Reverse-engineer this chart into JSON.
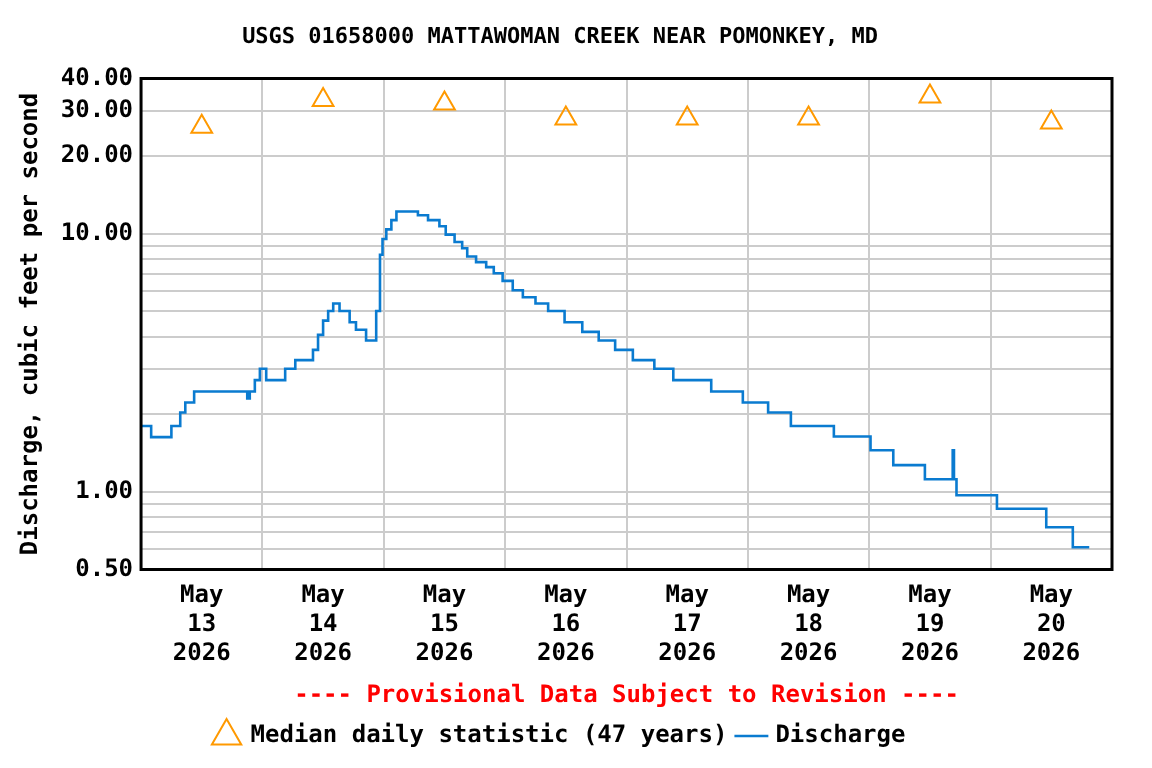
{
  "chart_data": {
    "type": "step",
    "title": "USGS 01658000 MATTAWOMAN CREEK NEAR POMONKEY, MD",
    "ylabel": "Discharge, cubic feet per second",
    "annotations": [
      "---- Provisional Data Subject to Revision ----"
    ],
    "xlim": [
      "2026-05-13T00:00",
      "2026-05-21T00:00"
    ],
    "xticks": [
      {
        "value": "2026-05-13T12:00",
        "label": "May 13 2026"
      },
      {
        "value": "2026-05-14T00:00",
        "label": null
      },
      {
        "value": "2026-05-14T12:00",
        "label": "May 14 2026"
      },
      {
        "value": "2026-05-15T00:00",
        "label": null
      },
      {
        "value": "2026-05-15T12:00",
        "label": "May 15 2026"
      },
      {
        "value": "2026-05-16T00:00",
        "label": null
      },
      {
        "value": "2026-05-16T12:00",
        "label": "May 16 2026"
      },
      {
        "value": "2026-05-17T00:00",
        "label": null
      },
      {
        "value": "2026-05-17T12:00",
        "label": "May 17 2026"
      },
      {
        "value": "2026-05-18T00:00",
        "label": null
      },
      {
        "value": "2026-05-18T12:00",
        "label": "May 18 2026"
      },
      {
        "value": "2026-05-19T00:00",
        "label": null
      },
      {
        "value": "2026-05-19T12:00",
        "label": "May 19 2026"
      },
      {
        "value": "2026-05-20T00:00",
        "label": null
      },
      {
        "value": "2026-05-20T12:00",
        "label": "May 20 2026"
      }
    ],
    "ylim": [
      0.5,
      40
    ],
    "yticks": [
      {
        "value": 0.5,
        "label": "0.50"
      },
      {
        "value": 0.6,
        "label": null
      },
      {
        "value": 0.7,
        "label": null
      },
      {
        "value": 0.8,
        "label": null
      },
      {
        "value": 0.9,
        "label": null
      },
      {
        "value": 1,
        "label": "1.00"
      },
      {
        "value": 2,
        "label": null
      },
      {
        "value": 3,
        "label": null
      },
      {
        "value": 4,
        "label": null
      },
      {
        "value": 5,
        "label": null
      },
      {
        "value": 6,
        "label": null
      },
      {
        "value": 7,
        "label": null
      },
      {
        "value": 8,
        "label": null
      },
      {
        "value": 9,
        "label": null
      },
      {
        "value": 10,
        "label": "10.00"
      },
      {
        "value": 20,
        "label": "20.00"
      },
      {
        "value": 30,
        "label": "30.00"
      },
      {
        "value": 40,
        "label": "40.00"
      }
    ],
    "log": true,
    "grid": true,
    "legend": "bottom",
    "series": [
      {
        "name": "Median daily statistic (47 years)",
        "type": "scatter",
        "marker": "triangle",
        "color": "#ff9900",
        "x": [
          "2026-05-13T12:00",
          "2026-05-14T12:00",
          "2026-05-15T12:00",
          "2026-05-16T12:00",
          "2026-05-17T12:00",
          "2026-05-18T12:00",
          "2026-05-19T12:00",
          "2026-05-20T12:00"
        ],
        "values": [
          26,
          33,
          32,
          28,
          28,
          28,
          34,
          27
        ]
      },
      {
        "name": "Discharge",
        "marker": "none",
        "color": "#0a7bd0",
        "x": [
          "2026-05-13T00:00",
          "2026-05-13T02:00",
          "2026-05-13T06:00",
          "2026-05-13T07:45",
          "2026-05-13T08:45",
          "2026-05-13T10:30",
          "2026-05-13T21:00",
          "2026-05-13T21:30",
          "2026-05-13T22:30",
          "2026-05-13T23:30",
          "2026-05-14T00:45",
          "2026-05-14T04:30",
          "2026-05-14T06:30",
          "2026-05-14T10:00",
          "2026-05-14T11:00",
          "2026-05-14T12:00",
          "2026-05-14T13:00",
          "2026-05-14T14:00",
          "2026-05-14T15:15",
          "2026-05-14T17:15",
          "2026-05-14T18:30",
          "2026-05-14T20:30",
          "2026-05-14T22:30",
          "2026-05-14T23:15",
          "2026-05-14T23:45",
          "2026-05-15T00:30",
          "2026-05-15T01:30",
          "2026-05-15T02:30",
          "2026-05-15T06:45",
          "2026-05-15T08:45",
          "2026-05-15T11:00",
          "2026-05-15T12:15",
          "2026-05-15T14:00",
          "2026-05-15T15:30",
          "2026-05-15T16:30",
          "2026-05-15T18:15",
          "2026-05-15T20:15",
          "2026-05-15T21:45",
          "2026-05-15T23:30",
          "2026-05-16T01:30",
          "2026-05-16T03:30",
          "2026-05-16T06:00",
          "2026-05-16T08:30",
          "2026-05-16T11:45",
          "2026-05-16T15:15",
          "2026-05-16T18:30",
          "2026-05-16T21:45",
          "2026-05-17T01:15",
          "2026-05-17T05:30",
          "2026-05-17T09:15",
          "2026-05-17T16:45",
          "2026-05-17T23:00",
          "2026-05-18T04:00",
          "2026-05-18T08:30",
          "2026-05-18T17:00",
          "2026-05-19T00:15",
          "2026-05-19T04:45",
          "2026-05-19T11:00",
          "2026-05-19T16:30",
          "2026-05-19T16:45",
          "2026-05-19T17:15",
          "2026-05-20T01:15",
          "2026-05-20T11:00",
          "2026-05-20T16:15",
          "2026-05-20T19:30"
        ],
        "values": [
          1.8,
          1.63,
          1.8,
          2.03,
          2.22,
          2.45,
          2.3,
          2.45,
          2.71,
          3.0,
          2.71,
          3.0,
          3.24,
          3.55,
          4.06,
          4.61,
          5.02,
          5.37,
          5.02,
          4.54,
          4.25,
          3.86,
          5.02,
          8.3,
          9.55,
          10.4,
          11.3,
          12.2,
          11.8,
          11.3,
          10.7,
          9.93,
          9.29,
          8.79,
          8.17,
          7.77,
          7.43,
          7.03,
          6.57,
          6.04,
          5.68,
          5.37,
          5.02,
          4.54,
          4.17,
          3.86,
          3.55,
          3.24,
          3.0,
          2.71,
          2.45,
          2.22,
          2.03,
          1.8,
          1.64,
          1.45,
          1.27,
          1.12,
          1.45,
          1.12,
          0.97,
          0.86,
          0.73,
          0.61,
          0.61
        ]
      }
    ]
  }
}
